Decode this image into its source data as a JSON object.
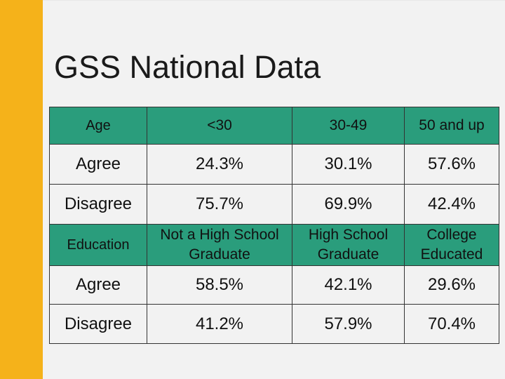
{
  "slide": {
    "title": "GSS National Data"
  },
  "colors": {
    "accent": "#f5b21a",
    "header_fill": "#2a9d7c",
    "background": "#f2f2f2"
  },
  "age_table": {
    "category": "Age",
    "columns": [
      "<30",
      "30-49",
      "50 and up"
    ],
    "rows": [
      {
        "label": "Agree",
        "values": [
          "24.3%",
          "30.1%",
          "57.6%"
        ]
      },
      {
        "label": "Disagree",
        "values": [
          "75.7%",
          "69.9%",
          "42.4%"
        ]
      }
    ]
  },
  "education_table": {
    "category": "Education",
    "columns": [
      [
        "Not a High School",
        "Graduate"
      ],
      [
        "High School",
        "Graduate"
      ],
      [
        "College",
        "Educated"
      ]
    ],
    "rows": [
      {
        "label": "Agree",
        "values": [
          "58.5%",
          "42.1%",
          "29.6%"
        ]
      },
      {
        "label": "Disagree",
        "values": [
          "41.2%",
          "57.9%",
          "70.4%"
        ]
      }
    ]
  }
}
